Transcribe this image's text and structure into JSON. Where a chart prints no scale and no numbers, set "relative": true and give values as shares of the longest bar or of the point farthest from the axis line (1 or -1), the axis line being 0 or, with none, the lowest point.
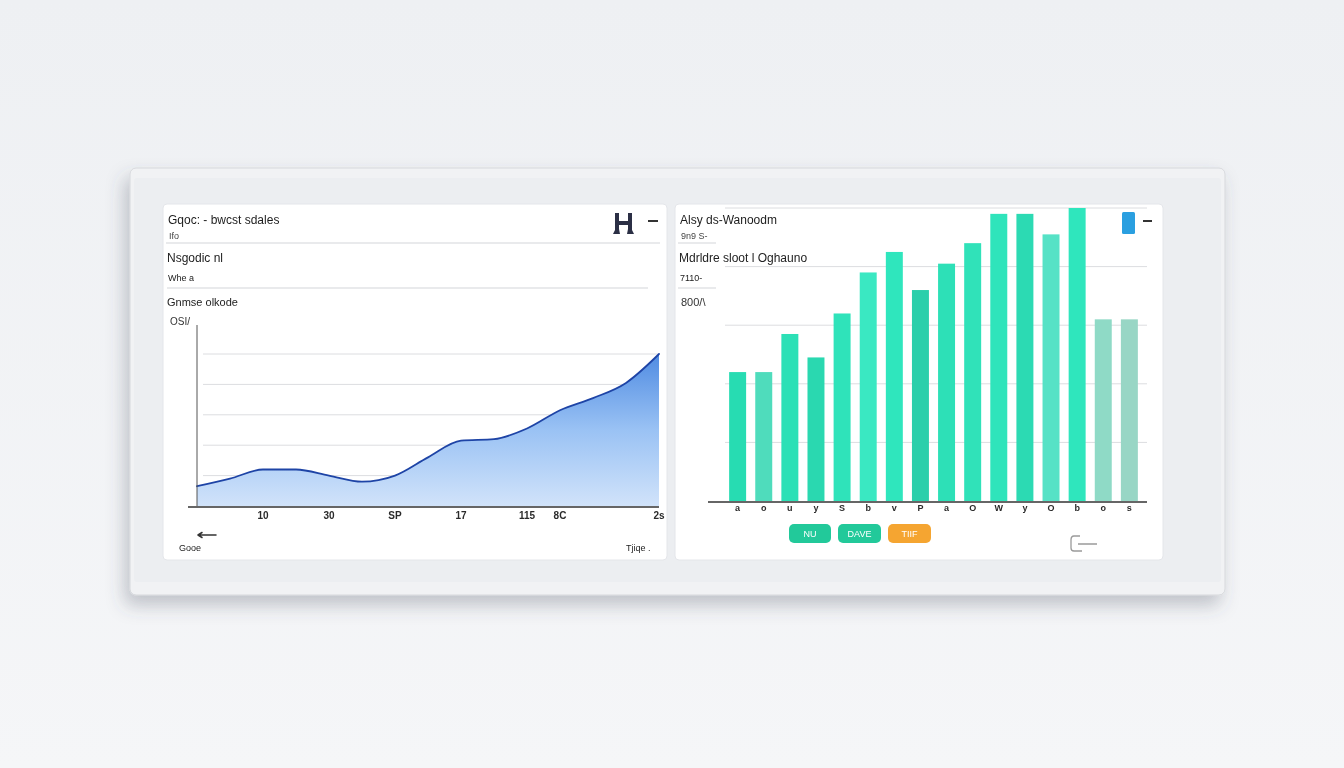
{
  "chart_data": [
    {
      "type": "area",
      "title": "Gqoc: - bwcst sdales",
      "subtitle": "Ifo",
      "ylabel": "OSI/",
      "annotations": [
        "Nsgodic nl",
        "Whe a",
        "Gnmse olkode",
        "Gooe",
        "Tjiqe ."
      ],
      "categories": [
        null,
        null,
        "10",
        null,
        "30",
        null,
        "SP",
        null,
        "17",
        null,
        "115",
        "8C",
        null,
        null,
        "2s"
      ],
      "series": [
        {
          "color": "#1e44a6",
          "values": [
            0.13,
            0.18,
            0.24,
            0.24,
            0.2,
            0.16,
            0.2,
            0.32,
            0.43,
            0.44,
            0.51,
            0.63,
            0.71,
            0.81,
            1
          ]
        }
      ],
      "relative": true,
      "grid": true
    },
    {
      "type": "bar",
      "title": "Alsy ds-Wanoodm",
      "subtitle": "9n9 S-",
      "ylabel": "800/\\",
      "annotations": [
        "Mdrldre sloot l Oghauno",
        "7110-",
        "NU",
        "DAVE",
        "TIIF"
      ],
      "categories": [
        "a",
        "o",
        "u",
        "y",
        "S",
        "b",
        "v",
        "P",
        "a",
        "O",
        "W",
        "y",
        "O",
        "b",
        "o",
        "s"
      ],
      "values": [
        0.44,
        0.44,
        0.57,
        0.49,
        0.64,
        0.78,
        0.85,
        0.72,
        0.81,
        0.88,
        0.98,
        0.98,
        0.91,
        1,
        0.62,
        0.62
      ],
      "colors": [
        "#27dcb2",
        "#4fdcbc",
        "#2ce0b6",
        "#2ad8b0",
        "#2fe3ba",
        "#3ae8c2",
        "#2fe6bd",
        "#2bcfab",
        "#2de0b7",
        "#30e2b9",
        "#2fe4bb",
        "#2cdab3",
        "#56e2c6",
        "#2fe6bd",
        "#8fdac6",
        "#98d6c5"
      ],
      "relative": true,
      "grid": true
    }
  ]
}
